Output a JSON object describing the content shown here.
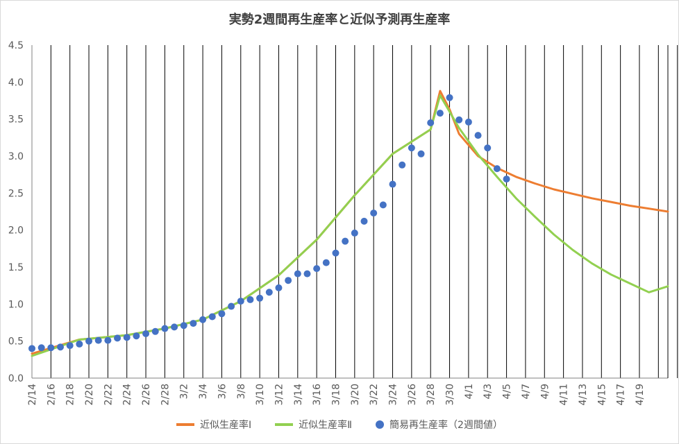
{
  "chart_data": {
    "type": "line",
    "title": "実勢2週間再生産率と近似予測再生産率",
    "ylim": [
      0,
      4.5
    ],
    "yticks": [
      "0.0",
      "0.5",
      "1.0",
      "1.5",
      "2.0",
      "2.5",
      "3.0",
      "3.5",
      "4.0",
      "4.5"
    ],
    "x_labels": [
      "2/14",
      "2/16",
      "2/18",
      "2/20",
      "2/22",
      "2/24",
      "2/26",
      "2/28",
      "3/2",
      "3/4",
      "3/6",
      "3/8",
      "3/10",
      "3/12",
      "3/14",
      "3/16",
      "3/18",
      "3/20",
      "3/22",
      "3/24",
      "3/26",
      "3/28",
      "3/30",
      "4/1",
      "4/3",
      "4/5",
      "4/7",
      "4/9",
      "4/11",
      "4/13",
      "4/15",
      "4/17",
      "4/19"
    ],
    "legend_position": "bottom",
    "grid": "vertical",
    "series": [
      {
        "name": "近似生産率Ⅰ",
        "kind": "line",
        "color": "#ed7d31",
        "points": [
          [
            0,
            0.33
          ],
          [
            5,
            0.52
          ],
          [
            10,
            0.58
          ],
          [
            14,
            0.67
          ],
          [
            18,
            0.79
          ],
          [
            22,
            1.04
          ],
          [
            26,
            1.39
          ],
          [
            30,
            1.87
          ],
          [
            34,
            2.47
          ],
          [
            38,
            3.03
          ],
          [
            42,
            3.36
          ],
          [
            43,
            3.88
          ],
          [
            44,
            3.63
          ],
          [
            45,
            3.3
          ],
          [
            47,
            3.0
          ],
          [
            49,
            2.84
          ],
          [
            51,
            2.72
          ],
          [
            53,
            2.63
          ],
          [
            55,
            2.55
          ],
          [
            57,
            2.49
          ],
          [
            59,
            2.43
          ],
          [
            61,
            2.38
          ],
          [
            63,
            2.33
          ],
          [
            65,
            2.29
          ],
          [
            67,
            2.25
          ]
        ]
      },
      {
        "name": "近似生産率Ⅱ",
        "kind": "line",
        "color": "#92d050",
        "points": [
          [
            0,
            0.3
          ],
          [
            5,
            0.52
          ],
          [
            10,
            0.58
          ],
          [
            14,
            0.67
          ],
          [
            18,
            0.79
          ],
          [
            22,
            1.04
          ],
          [
            26,
            1.39
          ],
          [
            30,
            1.87
          ],
          [
            34,
            2.47
          ],
          [
            38,
            3.03
          ],
          [
            42,
            3.36
          ],
          [
            43,
            3.82
          ],
          [
            45,
            3.38
          ],
          [
            47,
            3.02
          ],
          [
            49,
            2.72
          ],
          [
            51,
            2.43
          ],
          [
            53,
            2.18
          ],
          [
            55,
            1.94
          ],
          [
            57,
            1.73
          ],
          [
            59,
            1.55
          ],
          [
            61,
            1.4
          ],
          [
            63,
            1.28
          ],
          [
            65,
            1.16
          ],
          [
            67,
            1.24
          ]
        ]
      },
      {
        "name": "簡易再生産率（2週間値）",
        "kind": "scatter",
        "color": "#4472c4",
        "points": [
          [
            0,
            0.4
          ],
          [
            1,
            0.41
          ],
          [
            2,
            0.41
          ],
          [
            3,
            0.42
          ],
          [
            4,
            0.44
          ],
          [
            5,
            0.46
          ],
          [
            6,
            0.5
          ],
          [
            7,
            0.51
          ],
          [
            8,
            0.51
          ],
          [
            9,
            0.54
          ],
          [
            10,
            0.55
          ],
          [
            11,
            0.57
          ],
          [
            12,
            0.6
          ],
          [
            13,
            0.63
          ],
          [
            14,
            0.67
          ],
          [
            15,
            0.69
          ],
          [
            16,
            0.71
          ],
          [
            17,
            0.74
          ],
          [
            18,
            0.79
          ],
          [
            19,
            0.83
          ],
          [
            20,
            0.87
          ],
          [
            21,
            0.97
          ],
          [
            22,
            1.04
          ],
          [
            23,
            1.06
          ],
          [
            24,
            1.08
          ],
          [
            25,
            1.16
          ],
          [
            26,
            1.22
          ],
          [
            27,
            1.32
          ],
          [
            28,
            1.41
          ],
          [
            29,
            1.41
          ],
          [
            30,
            1.48
          ],
          [
            31,
            1.56
          ],
          [
            32,
            1.69
          ],
          [
            33,
            1.85
          ],
          [
            34,
            1.96
          ],
          [
            35,
            2.12
          ],
          [
            36,
            2.23
          ],
          [
            37,
            2.34
          ],
          [
            38,
            2.62
          ],
          [
            39,
            2.88
          ],
          [
            40,
            3.11
          ],
          [
            41,
            3.03
          ],
          [
            42,
            3.45
          ],
          [
            43,
            3.58
          ],
          [
            44,
            3.79
          ],
          [
            45,
            3.49
          ],
          [
            46,
            3.46
          ],
          [
            47,
            3.28
          ],
          [
            48,
            3.11
          ],
          [
            49,
            2.83
          ],
          [
            50,
            2.69
          ]
        ]
      }
    ]
  }
}
